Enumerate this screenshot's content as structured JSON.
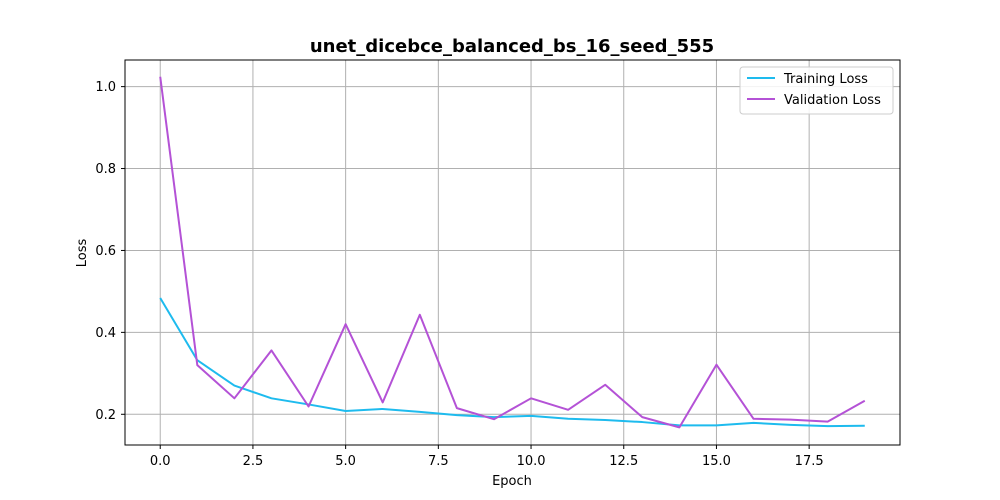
{
  "chart_data": {
    "type": "line",
    "title": "unet_dicebce_balanced_bs_16_seed_555",
    "xlabel": "Epoch",
    "ylabel": "Loss",
    "xlim": [
      -0.95,
      19.95
    ],
    "ylim": [
      0.125,
      1.065
    ],
    "xticks": [
      0,
      2.5,
      5,
      7.5,
      10,
      12.5,
      15,
      17.5
    ],
    "xtick_labels": [
      "0.0",
      "2.5",
      "5.0",
      "7.5",
      "10.0",
      "12.5",
      "15.0",
      "17.5"
    ],
    "yticks": [
      0.2,
      0.4,
      0.6,
      0.8,
      1.0
    ],
    "ytick_labels": [
      "0.2",
      "0.4",
      "0.6",
      "0.8",
      "1.0"
    ],
    "grid": true,
    "legend_position": "top-right",
    "x": [
      0,
      1,
      2,
      3,
      4,
      5,
      6,
      7,
      8,
      9,
      10,
      11,
      12,
      13,
      14,
      15,
      16,
      17,
      18,
      19
    ],
    "series": [
      {
        "name": "Training Loss",
        "color": "#1ebbee",
        "values": [
          0.484,
          0.332,
          0.27,
          0.239,
          0.224,
          0.208,
          0.213,
          0.206,
          0.198,
          0.193,
          0.196,
          0.189,
          0.186,
          0.181,
          0.173,
          0.173,
          0.179,
          0.174,
          0.171,
          0.172
        ]
      },
      {
        "name": "Validation Loss",
        "color": "#b452d6",
        "values": [
          1.024,
          0.32,
          0.239,
          0.356,
          0.219,
          0.42,
          0.229,
          0.443,
          0.215,
          0.188,
          0.239,
          0.211,
          0.272,
          0.193,
          0.168,
          0.321,
          0.189,
          0.187,
          0.182,
          0.233
        ]
      }
    ]
  }
}
